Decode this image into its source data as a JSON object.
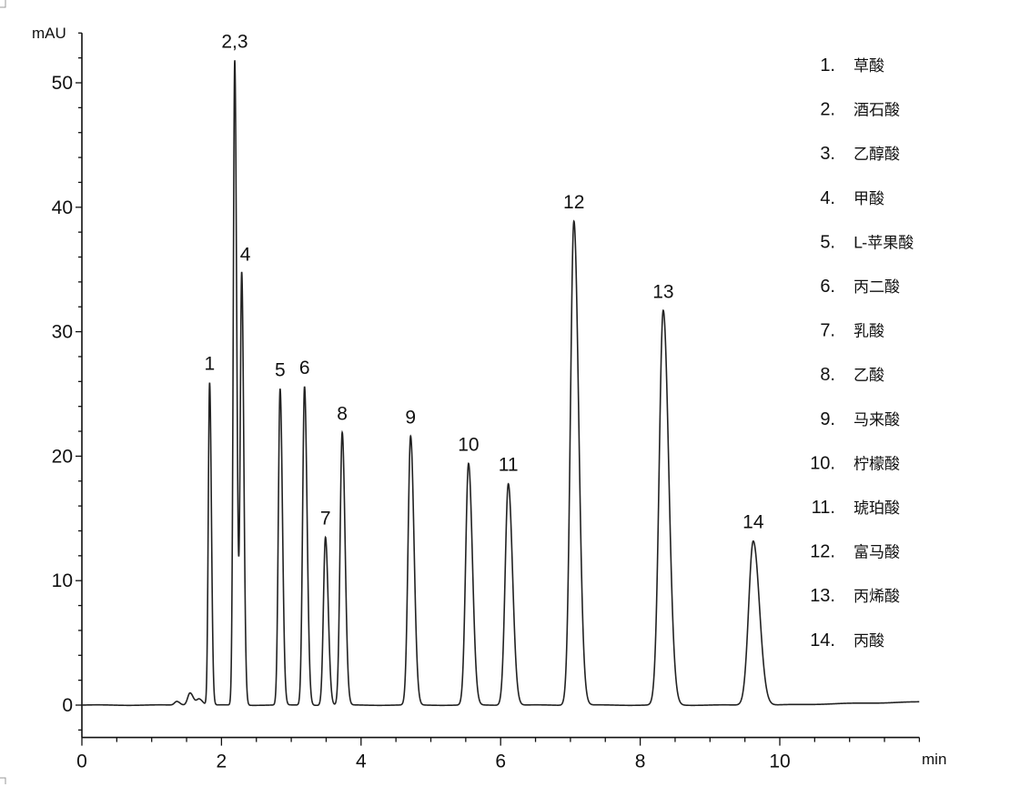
{
  "chart_data": {
    "type": "line",
    "xlabel": "min",
    "ylabel": "mAU",
    "xlim": [
      0,
      12
    ],
    "ylim": [
      -2.6,
      54
    ],
    "x_ticks": [
      0,
      2,
      4,
      6,
      8,
      10
    ],
    "x_minor_step": 0.5,
    "y_ticks": [
      0,
      10,
      20,
      30,
      40,
      50
    ],
    "y_minor_step": 2,
    "grid": false,
    "line_color": "#222222",
    "peaks": [
      {
        "label": "1",
        "rt": 1.83,
        "height": 25.9
      },
      {
        "label": "2,3",
        "rt": 2.19,
        "height": 51.8
      },
      {
        "label": "4",
        "rt": 2.29,
        "height": 34.7
      },
      {
        "label": "5",
        "rt": 2.84,
        "height": 25.4
      },
      {
        "label": "6",
        "rt": 3.19,
        "height": 25.6
      },
      {
        "label": "7",
        "rt": 3.49,
        "height": 13.5
      },
      {
        "label": "8",
        "rt": 3.73,
        "height": 21.9
      },
      {
        "label": "9",
        "rt": 4.71,
        "height": 21.6
      },
      {
        "label": "10",
        "rt": 5.54,
        "height": 19.4
      },
      {
        "label": "11",
        "rt": 6.11,
        "height": 17.8
      },
      {
        "label": "12",
        "rt": 7.05,
        "height": 38.9
      },
      {
        "label": "13",
        "rt": 8.33,
        "height": 31.7
      },
      {
        "label": "14",
        "rt": 9.62,
        "height": 13.2
      }
    ],
    "minor_peaks": [
      {
        "rt": 1.36,
        "height": 0.3
      },
      {
        "rt": 1.55,
        "height": 1.0
      },
      {
        "rt": 1.68,
        "height": 0.5
      }
    ],
    "legend_position": "right",
    "legend": [
      {
        "num": "1.",
        "name": "草酸"
      },
      {
        "num": "2.",
        "name": "酒石酸"
      },
      {
        "num": "3.",
        "name": "乙醇酸"
      },
      {
        "num": "4.",
        "name": "甲酸"
      },
      {
        "num": "5.",
        "name": "L-苹果酸"
      },
      {
        "num": "6.",
        "name": "丙二酸"
      },
      {
        "num": "7.",
        "name": "乳酸"
      },
      {
        "num": "8.",
        "name": "乙酸"
      },
      {
        "num": "9.",
        "name": "马来酸"
      },
      {
        "num": "10.",
        "name": "柠檬酸"
      },
      {
        "num": "11.",
        "name": "琥珀酸"
      },
      {
        "num": "12.",
        "name": "富马酸"
      },
      {
        "num": "13.",
        "name": "丙烯酸"
      },
      {
        "num": "14.",
        "name": "丙酸"
      }
    ]
  }
}
